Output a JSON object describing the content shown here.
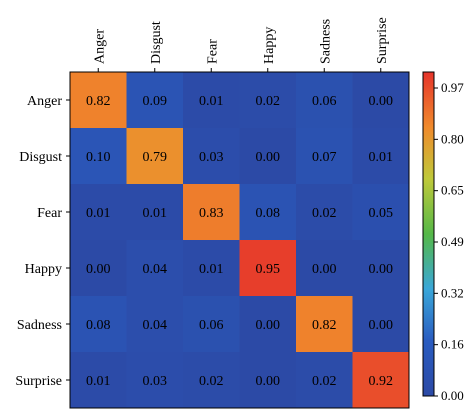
{
  "chart_data": {
    "type": "heatmap",
    "categories": [
      "Anger",
      "Disgust",
      "Fear",
      "Happy",
      "Sadness",
      "Surprise"
    ],
    "values": [
      [
        0.82,
        0.09,
        0.01,
        0.02,
        0.06,
        0.0
      ],
      [
        0.1,
        0.79,
        0.03,
        0.0,
        0.07,
        0.01
      ],
      [
        0.01,
        0.01,
        0.83,
        0.08,
        0.02,
        0.05
      ],
      [
        0.0,
        0.04,
        0.01,
        0.95,
        0.0,
        0.0
      ],
      [
        0.08,
        0.04,
        0.06,
        0.0,
        0.82,
        0.0
      ],
      [
        0.01,
        0.03,
        0.02,
        0.0,
        0.02,
        0.92
      ]
    ],
    "value_labels": [
      [
        "0.82",
        "0.09",
        "0.01",
        "0.02",
        "0.06",
        "0.00"
      ],
      [
        "0.10",
        "0.79",
        "0.03",
        "0.00",
        "0.07",
        "0.01"
      ],
      [
        "0.01",
        "0.01",
        "0.83",
        "0.08",
        "0.02",
        "0.05"
      ],
      [
        "0.00",
        "0.04",
        "0.01",
        "0.95",
        "0.00",
        "0.00"
      ],
      [
        "0.08",
        "0.04",
        "0.06",
        "0.00",
        "0.82",
        "0.00"
      ],
      [
        "0.01",
        "0.03",
        "0.02",
        "0.00",
        "0.02",
        "0.92"
      ]
    ],
    "x_tick_position": "top",
    "x_tick_rotation_deg": -90,
    "colorbar": {
      "ticks": [
        "0.97",
        "0.80",
        "0.65",
        "0.49",
        "0.32",
        "0.16",
        "0.00"
      ],
      "range": [
        0.0,
        0.97
      ],
      "colormap": "jet",
      "position": "right"
    },
    "title": "",
    "xlabel": "",
    "ylabel": "",
    "grid": false
  }
}
